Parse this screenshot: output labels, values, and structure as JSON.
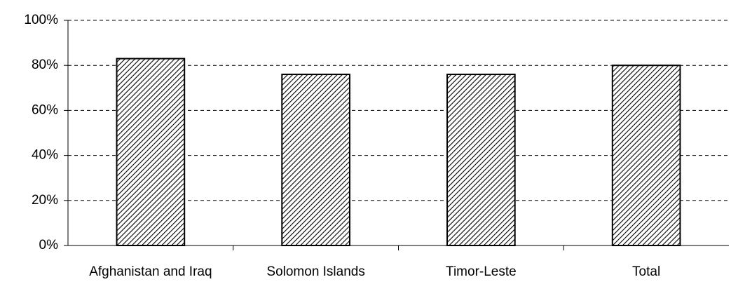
{
  "chart_data": {
    "type": "bar",
    "categories": [
      "Afghanistan and Iraq",
      "Solomon Islands",
      "Timor-Leste",
      "Total"
    ],
    "values": [
      83,
      76,
      76,
      80
    ],
    "color": "#000000",
    "ylim": [
      0,
      100
    ],
    "yticks": [
      {
        "value": 0,
        "label": "0%"
      },
      {
        "value": 20,
        "label": "20%"
      },
      {
        "value": 40,
        "label": "40%"
      },
      {
        "value": 60,
        "label": "60%"
      },
      {
        "value": 80,
        "label": "80%"
      },
      {
        "value": 100,
        "label": "100%"
      }
    ],
    "grid": true
  }
}
